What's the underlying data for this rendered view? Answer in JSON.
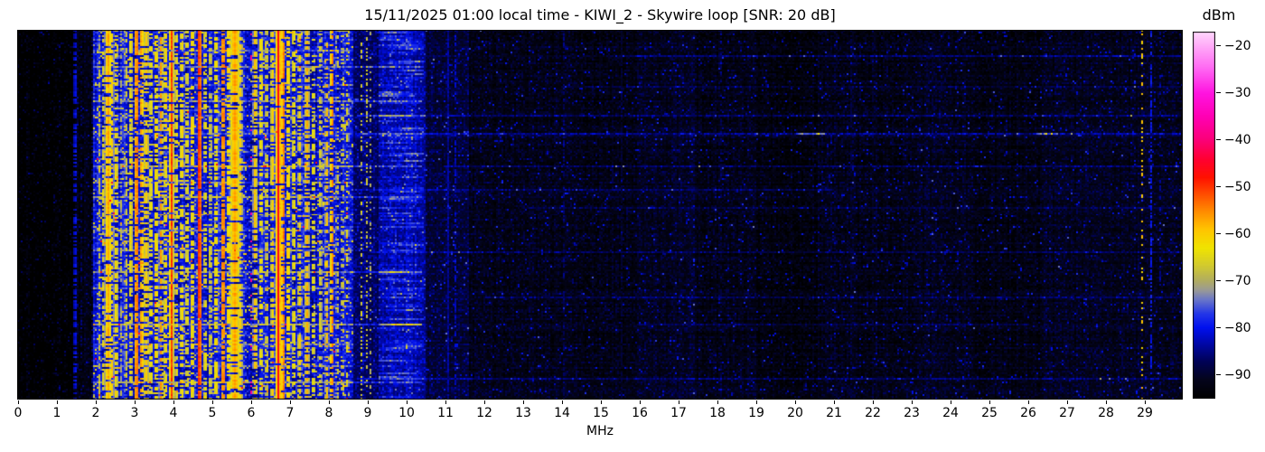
{
  "chart_data": {
    "type": "heatmap",
    "subtype": "radio-spectrogram-waterfall",
    "title": "15/11/2025 01:00 local time - KIWI_2 - Skywire loop [SNR: 20 dB]",
    "xlabel": "MHz",
    "x_ticks": [
      0,
      1,
      2,
      3,
      4,
      5,
      6,
      7,
      8,
      9,
      10,
      11,
      12,
      13,
      14,
      15,
      16,
      17,
      18,
      19,
      20,
      21,
      22,
      23,
      24,
      25,
      26,
      27,
      28,
      29
    ],
    "x_range_mhz": [
      0,
      29.95
    ],
    "grid": false,
    "colorbar": {
      "label": "dBm",
      "ticks": [
        -20,
        -30,
        -40,
        -50,
        -60,
        -70,
        -80,
        -90
      ],
      "top_value": -17,
      "bottom_value": -95,
      "gradient_stops": [
        [
          -95,
          "#000000"
        ],
        [
          -91,
          "#04041c"
        ],
        [
          -87,
          "#00025a"
        ],
        [
          -83,
          "#0008b0"
        ],
        [
          -80,
          "#0010ee"
        ],
        [
          -77,
          "#2436e8"
        ],
        [
          -74,
          "#6a76c8"
        ],
        [
          -72,
          "#9a9a96"
        ],
        [
          -70,
          "#b0ac62"
        ],
        [
          -67,
          "#d0c832"
        ],
        [
          -63,
          "#f0e400"
        ],
        [
          -59,
          "#ffc400"
        ],
        [
          -55,
          "#ff8800"
        ],
        [
          -51,
          "#ff4400"
        ],
        [
          -48,
          "#ff1100"
        ],
        [
          -44,
          "#ff0033"
        ],
        [
          -40,
          "#fb0078"
        ],
        [
          -35,
          "#ff00b4"
        ],
        [
          -30,
          "#ff14e0"
        ],
        [
          -25,
          "#ff64f2"
        ],
        [
          -20,
          "#ffaaf8"
        ],
        [
          -17,
          "#ffd8fc"
        ]
      ]
    },
    "seed": 7.31,
    "bands_format": [
      "f0_mhz",
      "f1_mhz",
      "base_dbm",
      "variance_db"
    ],
    "bands": [
      [
        0,
        1.45,
        -94,
        4.5
      ],
      [
        1.45,
        1.95,
        -91.5,
        5
      ],
      [
        1.95,
        8.65,
        -80.5,
        7
      ],
      [
        8.65,
        9.3,
        -86,
        6
      ],
      [
        9.3,
        10.5,
        -83,
        6
      ],
      [
        10.5,
        11.6,
        -88.5,
        5.5
      ],
      [
        11.6,
        16,
        -91,
        5.5
      ],
      [
        16,
        17.4,
        -90,
        5.5
      ],
      [
        17.4,
        19,
        -91,
        5.5
      ],
      [
        19,
        20.6,
        -92,
        5
      ],
      [
        20.6,
        23,
        -91,
        5.5
      ],
      [
        23,
        24.6,
        -90.5,
        5.5
      ],
      [
        24.6,
        26.4,
        -91.5,
        5
      ],
      [
        26.4,
        29.95,
        -90.5,
        5.5
      ]
    ],
    "carriers_format": [
      "f_mhz",
      "peak_dbm",
      "width_mhz",
      "duty_cycle"
    ],
    "carriers": [
      [
        0.25,
        -89,
        0.03,
        0.25
      ],
      [
        0.62,
        -89,
        0.02,
        0.2
      ],
      [
        1.08,
        -90,
        0.02,
        0.2
      ],
      [
        1.47,
        -79,
        0.035,
        0.6
      ],
      [
        1.62,
        -85,
        0.02,
        0.3
      ],
      [
        1.93,
        -82,
        0.025,
        0.5
      ],
      [
        2.1,
        -68,
        0.03,
        0.55
      ],
      [
        2.2,
        -64,
        0.03,
        0.6
      ],
      [
        2.32,
        -57,
        0.05,
        0.85
      ],
      [
        2.42,
        -60,
        0.03,
        0.6
      ],
      [
        2.52,
        -62,
        0.04,
        0.65
      ],
      [
        2.65,
        -70,
        0.04,
        0.5
      ],
      [
        2.78,
        -66,
        0.03,
        0.5
      ],
      [
        2.9,
        -63,
        0.035,
        0.6
      ],
      [
        3.05,
        -52,
        0.03,
        0.8
      ],
      [
        3.18,
        -55,
        0.03,
        0.6
      ],
      [
        3.3,
        -60,
        0.04,
        0.65
      ],
      [
        3.42,
        -63,
        0.04,
        0.55
      ],
      [
        3.55,
        -60,
        0.035,
        0.6
      ],
      [
        3.68,
        -56,
        0.03,
        0.55
      ],
      [
        3.8,
        -60,
        0.03,
        0.55
      ],
      [
        3.95,
        -50,
        0.03,
        0.9
      ],
      [
        4.08,
        -63,
        0.035,
        0.5
      ],
      [
        4.22,
        -61,
        0.04,
        0.55
      ],
      [
        4.35,
        -64,
        0.04,
        0.5
      ],
      [
        4.48,
        -60,
        0.035,
        0.55
      ],
      [
        4.67,
        -48,
        0.03,
        0.95
      ],
      [
        4.82,
        -62,
        0.03,
        0.5
      ],
      [
        4.95,
        -64,
        0.03,
        0.5
      ],
      [
        5.1,
        -61,
        0.04,
        0.6
      ],
      [
        5.28,
        -52,
        0.03,
        0.75
      ],
      [
        5.42,
        -60,
        0.04,
        0.6
      ],
      [
        5.58,
        -57,
        0.08,
        0.85
      ],
      [
        5.72,
        -61,
        0.04,
        0.6
      ],
      [
        6.0,
        -38,
        0.022,
        0.13
      ],
      [
        6.1,
        -59,
        0.035,
        0.65
      ],
      [
        6.25,
        -62,
        0.04,
        0.55
      ],
      [
        6.4,
        -65,
        0.035,
        0.5
      ],
      [
        6.55,
        -60,
        0.035,
        0.6
      ],
      [
        6.7,
        -46,
        0.03,
        0.97
      ],
      [
        6.82,
        -52,
        0.025,
        0.8
      ],
      [
        6.95,
        -58,
        0.03,
        0.6
      ],
      [
        7.1,
        -62,
        0.035,
        0.55
      ],
      [
        7.25,
        -61,
        0.035,
        0.55
      ],
      [
        7.44,
        -58,
        0.035,
        0.65
      ],
      [
        7.6,
        -63,
        0.035,
        0.5
      ],
      [
        7.78,
        -65,
        0.035,
        0.5
      ],
      [
        7.95,
        -59,
        0.03,
        0.5
      ],
      [
        8.08,
        -54,
        0.028,
        0.6
      ],
      [
        8.22,
        -66,
        0.03,
        0.4
      ],
      [
        8.35,
        -61,
        0.022,
        0.32
      ],
      [
        8.48,
        -62,
        0.022,
        0.32
      ],
      [
        8.85,
        -64,
        0.02,
        0.3
      ],
      [
        8.97,
        -66,
        0.02,
        0.3
      ],
      [
        9.08,
        -68,
        0.02,
        0.3
      ],
      [
        10.02,
        -74,
        0.018,
        0.6
      ],
      [
        10.35,
        -78,
        0.02,
        0.4
      ],
      [
        11.05,
        -75,
        0.016,
        0.95
      ],
      [
        11.25,
        -82,
        0.02,
        0.45
      ],
      [
        13.0,
        -80,
        0.012,
        0.9
      ],
      [
        14.05,
        -86,
        0.015,
        0.4
      ],
      [
        15.55,
        -80,
        0.012,
        0.85
      ],
      [
        16.9,
        -84,
        0.015,
        0.5
      ],
      [
        18.1,
        -86,
        0.015,
        0.4
      ],
      [
        21.45,
        -86,
        0.012,
        0.35
      ],
      [
        28.93,
        -60,
        0.016,
        0.22
      ],
      [
        29.15,
        -76,
        0.016,
        0.5
      ],
      [
        29.4,
        -84,
        0.014,
        0.3
      ]
    ],
    "streaks_format": {
      "y": "fraction of time axis from top",
      "f0_f1": "MHz span",
      "boost": "dB above background"
    },
    "streaks": [
      {
        "y": 0.071,
        "f0": 15.5,
        "f1": 29.95,
        "boost": 5
      },
      {
        "y": 0.152,
        "f0": 14.0,
        "f1": 29.95,
        "boost": 4
      },
      {
        "y": 0.232,
        "f0": 8.7,
        "f1": 29.95,
        "boost": 6.5
      },
      {
        "y": 0.281,
        "f0": 8.7,
        "f1": 29.95,
        "boost": 8
      },
      {
        "y": 0.367,
        "f0": 11.0,
        "f1": 29.95,
        "boost": 4.5
      },
      {
        "y": 0.433,
        "f0": 8.7,
        "f1": 21.0,
        "boost": 4
      },
      {
        "y": 0.482,
        "f0": 13.0,
        "f1": 29.95,
        "boost": 4.5
      },
      {
        "y": 0.604,
        "f0": 9.0,
        "f1": 29.95,
        "boost": 4
      },
      {
        "y": 0.726,
        "f0": 12.0,
        "f1": 29.95,
        "boost": 4.5
      },
      {
        "y": 0.8,
        "f0": 16.0,
        "f1": 26.0,
        "boost": 3.5
      },
      {
        "y": 0.946,
        "f0": 8.7,
        "f1": 29.95,
        "boost": 5
      }
    ],
    "spots": [
      {
        "y": 0.281,
        "f": 20.4,
        "w": 0.35,
        "boost": 10
      },
      {
        "y": 0.281,
        "f": 26.5,
        "w": 0.28,
        "boost": 10
      }
    ],
    "left_streaks_format": [
      [
        "y_fraction",
        "boost_db"
      ],
      "applied 1.95-8.65 MHz"
    ],
    "left_streaks": [
      [
        0.055,
        5
      ],
      [
        0.1,
        7
      ],
      [
        0.145,
        4
      ],
      [
        0.19,
        8
      ],
      [
        0.232,
        5
      ],
      [
        0.281,
        6
      ],
      [
        0.33,
        4
      ],
      [
        0.367,
        7
      ],
      [
        0.41,
        5
      ],
      [
        0.45,
        8
      ],
      [
        0.5,
        4
      ],
      [
        0.545,
        6
      ],
      [
        0.6,
        5
      ],
      [
        0.655,
        7
      ],
      [
        0.7,
        4
      ],
      [
        0.75,
        6
      ],
      [
        0.8,
        8
      ],
      [
        0.855,
        5
      ],
      [
        0.91,
        6
      ],
      [
        0.955,
        8
      ]
    ],
    "blob": {
      "f0": 9.3,
      "f1": 10.45,
      "center_min": 9.5,
      "center_spread": 0.8,
      "sigma": 0.4,
      "row_p": 0.6,
      "max_boost": 9
    }
  }
}
